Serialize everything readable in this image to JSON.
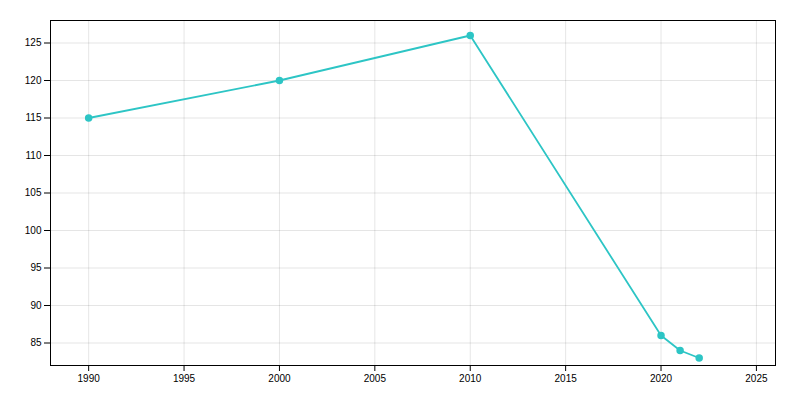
{
  "chart_data": {
    "type": "line",
    "x": [
      1990,
      2000,
      2010,
      2020,
      2021,
      2022
    ],
    "values": [
      115,
      120,
      126,
      86,
      84,
      83
    ],
    "color": "#2dc5c5",
    "marker": "circle",
    "xlim": [
      1988,
      2026
    ],
    "ylim": [
      82,
      128
    ],
    "xticks": [
      1990,
      1995,
      2000,
      2005,
      2010,
      2015,
      2020,
      2025
    ],
    "yticks": [
      85,
      90,
      95,
      100,
      105,
      110,
      115,
      120,
      125
    ],
    "grid": true
  }
}
